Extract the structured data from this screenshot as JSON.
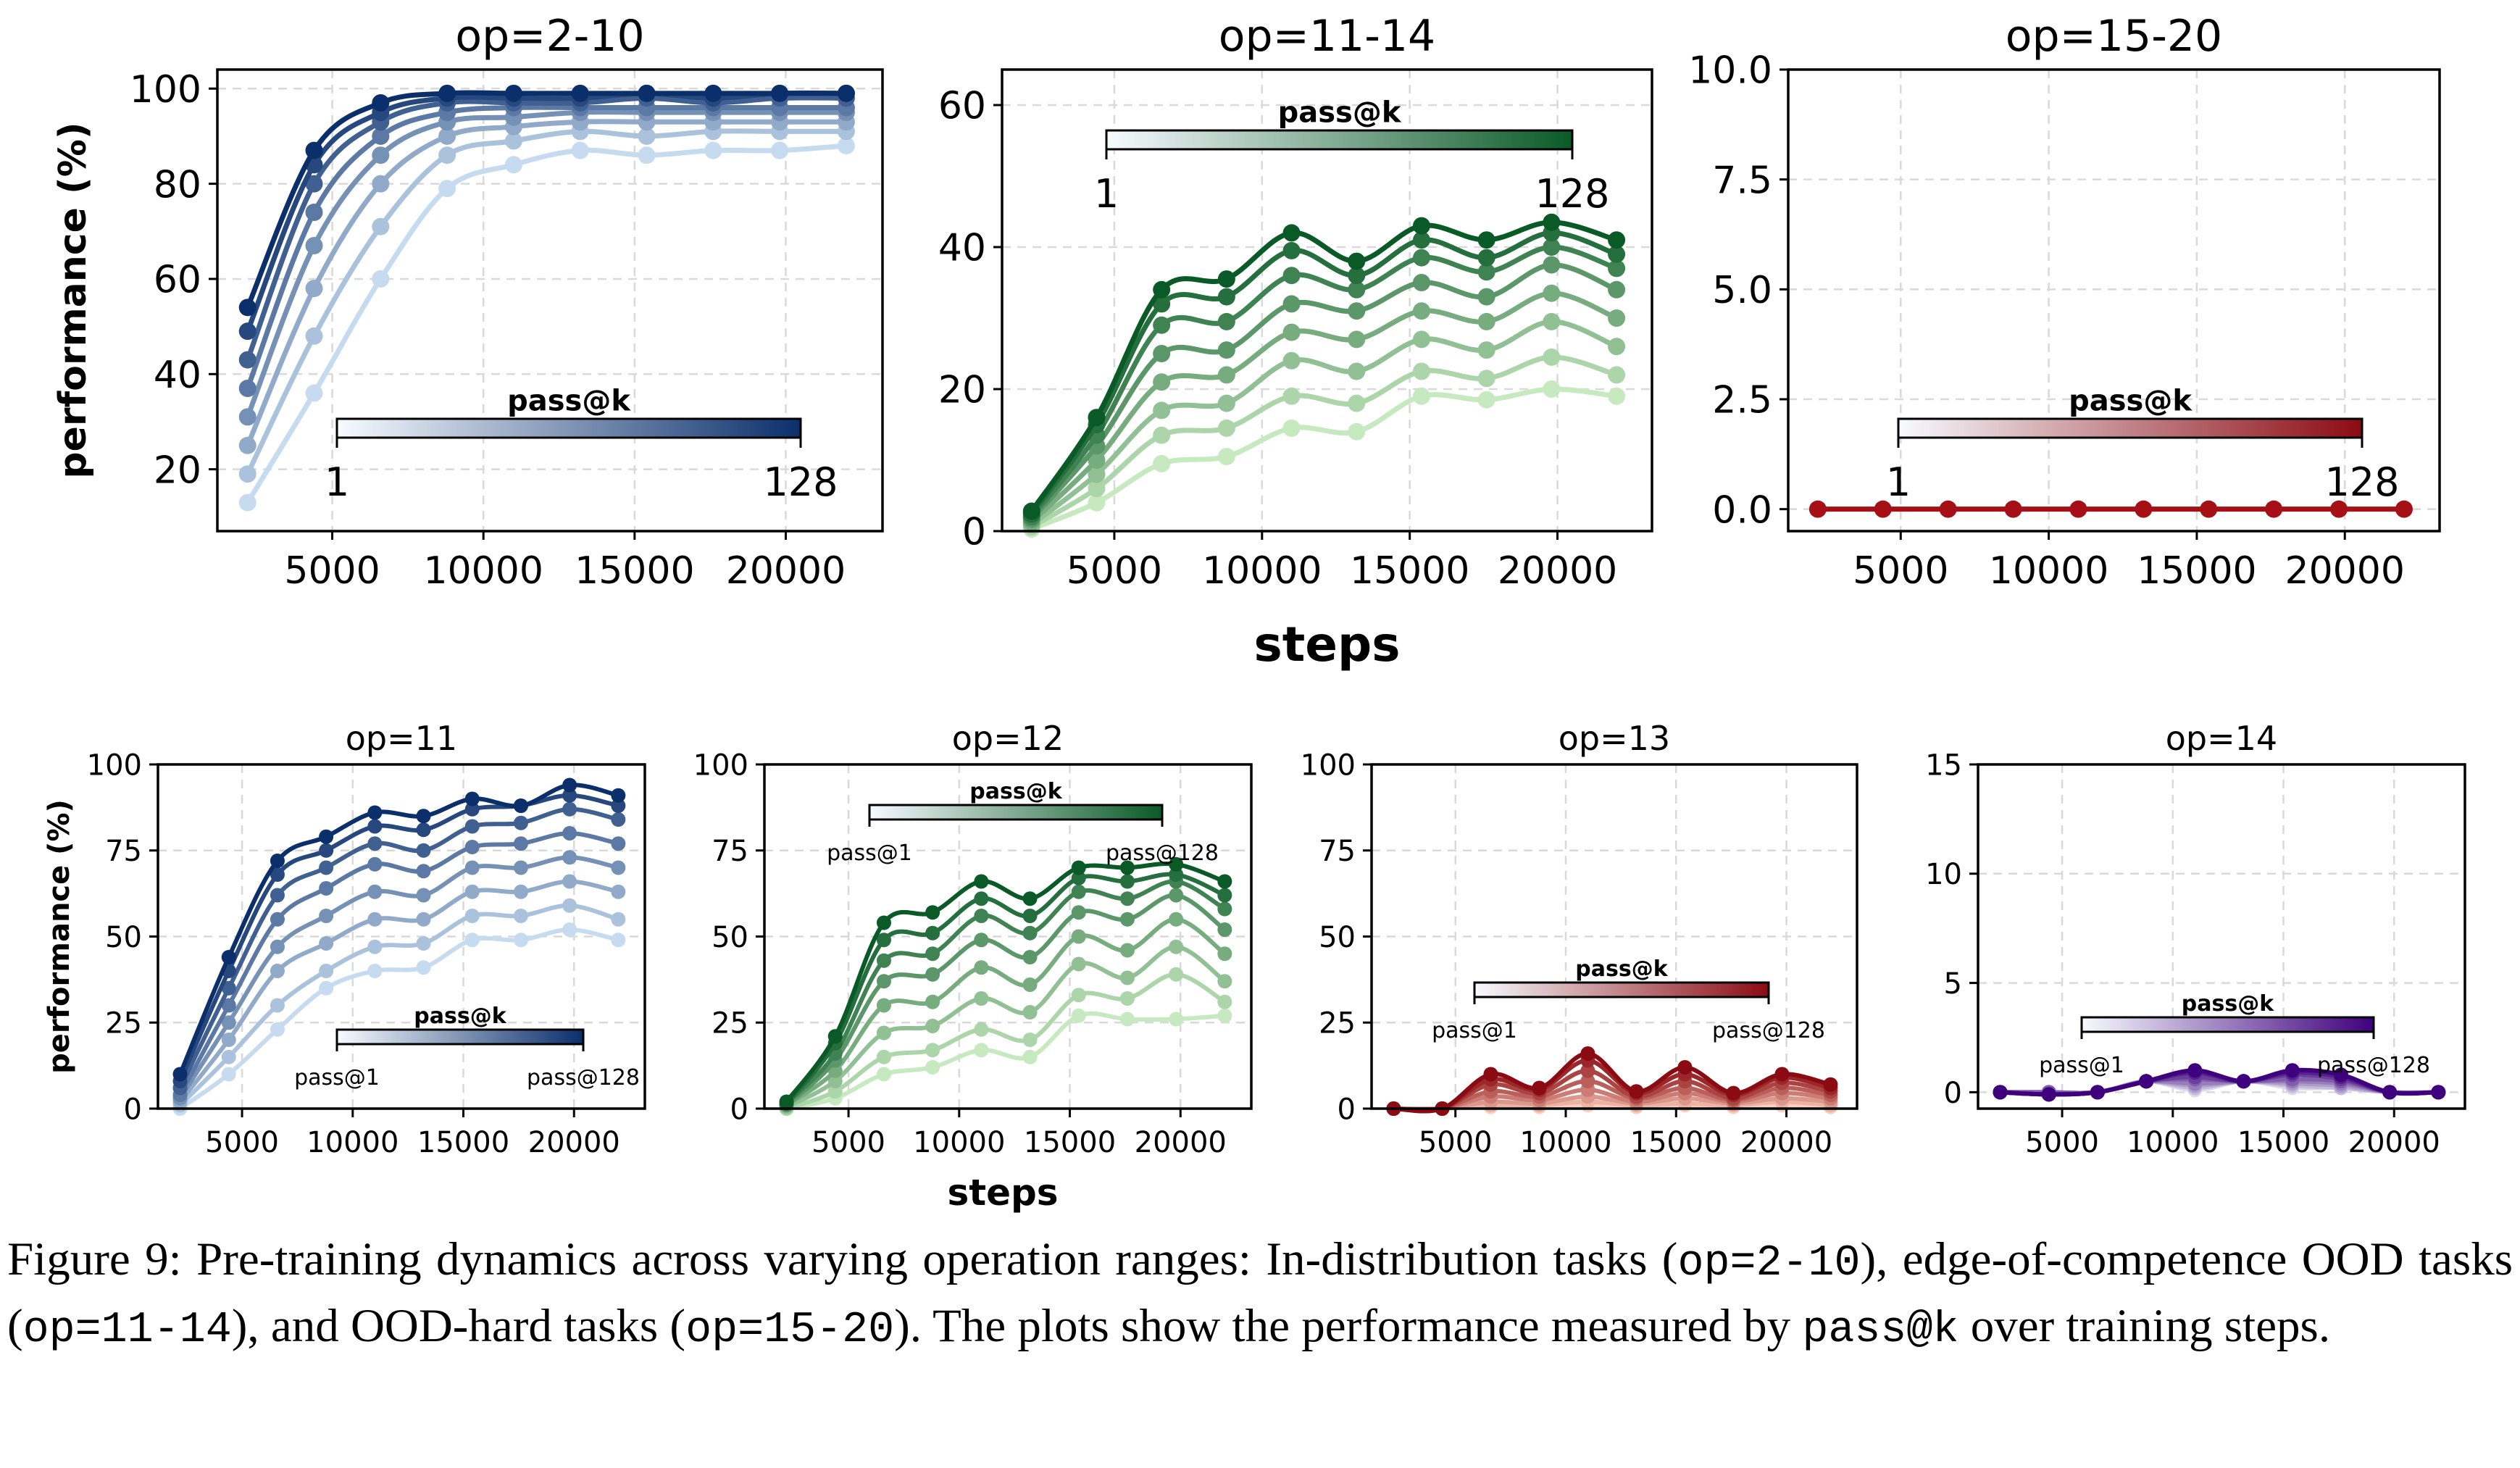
{
  "chart_data": [
    {
      "type": "line",
      "title": "op=2-10",
      "ylabel": "performance (%)",
      "xlabel": "",
      "xlim": [
        1200,
        23200
      ],
      "ylim": [
        7,
        104
      ],
      "yticks": [
        20,
        40,
        60,
        80,
        100
      ],
      "xticks": [
        5000,
        10000,
        15000,
        20000
      ],
      "colormap": "blues",
      "legend": {
        "title": "pass@k",
        "left": "1",
        "right": "128",
        "placement": "bottom-right"
      },
      "x": [
        2200,
        4400,
        6600,
        8800,
        11000,
        13200,
        15400,
        17600,
        19800,
        22000
      ],
      "series": [
        {
          "name": "pass@1",
          "values": [
            13,
            36,
            60,
            79,
            84,
            87,
            86,
            87,
            87,
            88
          ]
        },
        {
          "name": "pass@2",
          "values": [
            19,
            48,
            71,
            86,
            89,
            91,
            90,
            91,
            91,
            91
          ]
        },
        {
          "name": "pass@4",
          "values": [
            25,
            58,
            80,
            90,
            92,
            93,
            93,
            93,
            93,
            93
          ]
        },
        {
          "name": "pass@8",
          "values": [
            31,
            67,
            86,
            93,
            94,
            95,
            95,
            95,
            95,
            95
          ]
        },
        {
          "name": "pass@16",
          "values": [
            37,
            74,
            90,
            95,
            96,
            96,
            96,
            96,
            96,
            96
          ]
        },
        {
          "name": "pass@32",
          "values": [
            43,
            80,
            93,
            97,
            97,
            97,
            98,
            97,
            98,
            98
          ]
        },
        {
          "name": "pass@64",
          "values": [
            49,
            84,
            95,
            98,
            98,
            98,
            99,
            98,
            99,
            99
          ]
        },
        {
          "name": "pass@128",
          "values": [
            54,
            87,
            97,
            99,
            99,
            99,
            99,
            99,
            99,
            99
          ]
        }
      ]
    },
    {
      "type": "line",
      "title": "op=11-14",
      "ylabel": "",
      "xlabel": "steps",
      "xlim": [
        1200,
        23200
      ],
      "ylim": [
        0,
        65
      ],
      "yticks": [
        0,
        20,
        40,
        60
      ],
      "xticks": [
        5000,
        10000,
        15000,
        20000
      ],
      "colormap": "greens",
      "legend": {
        "title": "pass@k",
        "left": "1",
        "right": "128",
        "placement": "top-right"
      },
      "x": [
        2200,
        4400,
        6600,
        8800,
        11000,
        13200,
        15400,
        17600,
        19800,
        22000
      ],
      "series": [
        {
          "name": "pass@1",
          "values": [
            0.3,
            4,
            9.5,
            10.5,
            14.5,
            14,
            19,
            18.5,
            20,
            19
          ]
        },
        {
          "name": "pass@2",
          "values": [
            0.6,
            6,
            13.5,
            14.5,
            19,
            18,
            22.5,
            21.5,
            24.5,
            22
          ]
        },
        {
          "name": "pass@4",
          "values": [
            0.9,
            8,
            17,
            18,
            24,
            22.5,
            27,
            25.5,
            29.5,
            26
          ]
        },
        {
          "name": "pass@8",
          "values": [
            1.3,
            10,
            21,
            22,
            28,
            27,
            31,
            29.5,
            33.5,
            30
          ]
        },
        {
          "name": "pass@16",
          "values": [
            1.7,
            12,
            25,
            25.5,
            32,
            31,
            35,
            33,
            37.5,
            34
          ]
        },
        {
          "name": "pass@32",
          "values": [
            2,
            13.5,
            29,
            29.5,
            36,
            34,
            38.5,
            36.5,
            40,
            37
          ]
        },
        {
          "name": "pass@64",
          "values": [
            2.4,
            15,
            32,
            33,
            39.5,
            36,
            41,
            38.5,
            42,
            39
          ]
        },
        {
          "name": "pass@128",
          "values": [
            2.8,
            16,
            34,
            35.5,
            42,
            38,
            43,
            41,
            43.5,
            41
          ]
        }
      ]
    },
    {
      "type": "line",
      "title": "op=15-20",
      "ylabel": "",
      "xlabel": "",
      "xlim": [
        1200,
        23200
      ],
      "ylim": [
        -0.5,
        10
      ],
      "yticks": [
        0.0,
        2.5,
        5.0,
        7.5,
        10.0
      ],
      "xticks": [
        5000,
        10000,
        15000,
        20000
      ],
      "colormap": "reds",
      "legend": {
        "title": "pass@k",
        "left": "1",
        "right": "128",
        "placement": "bottom-right"
      },
      "x": [
        2200,
        4400,
        6600,
        8800,
        11000,
        13200,
        15400,
        17600,
        19800,
        22000
      ],
      "series": [
        {
          "name": "pass@1..128",
          "values": [
            0,
            0,
            0,
            0,
            0,
            0,
            0,
            0,
            0,
            0
          ]
        }
      ]
    },
    {
      "type": "line",
      "title": "op=11",
      "ylabel": "performance (%)",
      "xlabel": "",
      "xlim": [
        1200,
        23200
      ],
      "ylim": [
        0,
        100
      ],
      "yticks": [
        0,
        25,
        50,
        75,
        100
      ],
      "xticks": [
        5000,
        10000,
        15000,
        20000
      ],
      "colormap": "blues",
      "legend": {
        "title": "pass@k",
        "left": "pass@1",
        "right": "pass@128",
        "placement": "bottom-right"
      },
      "x": [
        2200,
        4400,
        6600,
        8800,
        11000,
        13200,
        15400,
        17600,
        19800,
        22000
      ],
      "series": [
        {
          "name": "pass@1",
          "values": [
            0,
            10,
            23,
            35,
            40,
            41,
            49,
            49,
            52,
            49
          ]
        },
        {
          "name": "pass@2",
          "values": [
            1,
            15,
            30,
            40,
            47,
            48,
            56,
            56,
            59,
            55
          ]
        },
        {
          "name": "pass@4",
          "values": [
            2,
            20,
            40,
            48,
            55,
            55,
            63,
            63,
            66,
            63
          ]
        },
        {
          "name": "pass@8",
          "values": [
            3,
            25,
            47,
            56,
            63,
            62,
            70,
            70,
            73,
            70
          ]
        },
        {
          "name": "pass@16",
          "values": [
            4,
            30,
            55,
            64,
            71,
            69,
            76,
            77,
            80,
            77
          ]
        },
        {
          "name": "pass@32",
          "values": [
            6,
            35,
            62,
            70,
            77,
            75,
            82,
            83,
            87,
            84
          ]
        },
        {
          "name": "pass@64",
          "values": [
            8,
            40,
            68,
            75,
            82,
            81,
            87,
            88,
            91,
            88
          ]
        },
        {
          "name": "pass@128",
          "values": [
            10,
            44,
            72,
            79,
            86,
            85,
            90,
            88,
            94,
            91
          ]
        }
      ]
    },
    {
      "type": "line",
      "title": "op=12",
      "ylabel": "",
      "xlabel": "steps",
      "xlim": [
        1200,
        23200
      ],
      "ylim": [
        0,
        100
      ],
      "yticks": [
        0,
        25,
        50,
        75,
        100
      ],
      "xticks": [
        5000,
        10000,
        15000,
        20000
      ],
      "colormap": "greens",
      "legend": {
        "title": "pass@k",
        "left": "pass@1",
        "right": "pass@128",
        "placement": "top-center"
      },
      "x": [
        2200,
        4400,
        6600,
        8800,
        11000,
        13200,
        15400,
        17600,
        19800,
        22000
      ],
      "series": [
        {
          "name": "pass@1",
          "values": [
            0,
            3,
            10,
            12,
            17,
            15,
            27,
            26,
            26,
            27
          ]
        },
        {
          "name": "pass@2",
          "values": [
            0,
            5,
            15,
            17,
            23,
            20,
            33,
            32,
            39,
            31
          ]
        },
        {
          "name": "pass@4",
          "values": [
            0.5,
            8,
            22,
            24,
            32,
            28,
            42,
            38,
            47,
            37
          ]
        },
        {
          "name": "pass@8",
          "values": [
            1,
            11,
            30,
            31,
            41,
            36,
            50,
            46,
            55,
            45
          ]
        },
        {
          "name": "pass@16",
          "values": [
            1,
            14,
            37,
            39,
            49,
            44,
            57,
            55,
            62,
            52
          ]
        },
        {
          "name": "pass@32",
          "values": [
            1.5,
            16,
            43,
            45,
            56,
            51,
            63,
            61,
            66,
            58
          ]
        },
        {
          "name": "pass@64",
          "values": [
            1.5,
            19,
            49,
            51,
            61,
            56,
            67,
            66,
            68,
            62
          ]
        },
        {
          "name": "pass@128",
          "values": [
            2,
            21,
            54,
            57,
            66,
            61,
            70,
            70,
            71,
            66
          ]
        }
      ]
    },
    {
      "type": "line",
      "title": "op=13",
      "ylabel": "",
      "xlabel": "",
      "xlim": [
        1200,
        23200
      ],
      "ylim": [
        0,
        100
      ],
      "yticks": [
        0,
        25,
        50,
        75,
        100
      ],
      "xticks": [
        5000,
        10000,
        15000,
        20000
      ],
      "colormap": "reds",
      "legend": {
        "title": "pass@k",
        "left": "pass@1",
        "right": "pass@128",
        "placement": "center"
      },
      "x": [
        2200,
        4400,
        6600,
        8800,
        11000,
        13200,
        15400,
        17600,
        19800,
        22000
      ],
      "series": [
        {
          "name": "pass@1",
          "values": [
            0,
            0,
            0.5,
            0.5,
            1,
            0.5,
            1,
            0.5,
            1,
            0.5
          ]
        },
        {
          "name": "pass@2",
          "values": [
            0,
            0,
            1,
            1,
            2,
            1,
            1.5,
            1,
            2,
            1
          ]
        },
        {
          "name": "pass@4",
          "values": [
            0,
            0,
            2,
            1.5,
            3.5,
            1.5,
            3,
            1.5,
            3,
            2
          ]
        },
        {
          "name": "pass@8",
          "values": [
            0,
            0,
            3.5,
            2.5,
            5.5,
            2,
            4.5,
            2,
            4.5,
            3
          ]
        },
        {
          "name": "pass@16",
          "values": [
            0,
            0,
            5,
            3.5,
            8,
            3,
            6,
            2.5,
            6,
            4
          ]
        },
        {
          "name": "pass@32",
          "values": [
            0,
            0,
            7,
            4.5,
            11,
            3.5,
            8,
            3,
            7.5,
            5
          ]
        },
        {
          "name": "pass@64",
          "values": [
            0,
            0,
            8.5,
            5.5,
            14,
            4.5,
            10,
            4,
            9,
            6
          ]
        },
        {
          "name": "pass@128",
          "values": [
            0,
            0,
            10,
            6,
            16,
            5,
            12,
            4.5,
            10,
            7
          ]
        }
      ]
    },
    {
      "type": "line",
      "title": "op=14",
      "ylabel": "",
      "xlabel": "",
      "xlim": [
        1200,
        23200
      ],
      "ylim": [
        -0.75,
        15
      ],
      "yticks": [
        0,
        5,
        10,
        15
      ],
      "xticks": [
        5000,
        10000,
        15000,
        20000
      ],
      "colormap": "purples",
      "legend": {
        "title": "pass@k",
        "left": "pass@1",
        "right": "pass@128",
        "placement": "center"
      },
      "x": [
        2200,
        4400,
        6600,
        8800,
        11000,
        13200,
        15400,
        17600,
        19800,
        22000
      ],
      "series": [
        {
          "name": "pass@1",
          "values": [
            0,
            0,
            0,
            0.5,
            0.1,
            0.5,
            0.2,
            0.2,
            0,
            0
          ]
        },
        {
          "name": "pass@2",
          "values": [
            0,
            0,
            0,
            0.5,
            0.2,
            0.5,
            0.3,
            0.2,
            0,
            0
          ]
        },
        {
          "name": "pass@4",
          "values": [
            0,
            0,
            0,
            0.5,
            0.3,
            0.5,
            0.4,
            0.3,
            0,
            0
          ]
        },
        {
          "name": "pass@8",
          "values": [
            0,
            0,
            0,
            0.5,
            0.4,
            0.5,
            0.5,
            0.4,
            0,
            0
          ]
        },
        {
          "name": "pass@16",
          "values": [
            0,
            0,
            0,
            0.5,
            0.6,
            0.5,
            0.6,
            0.5,
            0,
            0
          ]
        },
        {
          "name": "pass@32",
          "values": [
            0,
            -0.1,
            0,
            0.5,
            0.7,
            0.5,
            0.8,
            0.6,
            0,
            0
          ]
        },
        {
          "name": "pass@64",
          "values": [
            0,
            -0.1,
            0,
            0.5,
            0.9,
            0.5,
            0.9,
            0.7,
            0,
            0
          ]
        },
        {
          "name": "pass@128",
          "values": [
            0,
            -0.1,
            0,
            0.5,
            1.0,
            0.5,
            1.0,
            0.8,
            0,
            0
          ]
        }
      ]
    }
  ],
  "caption": {
    "p1": "Figure 9:  Pre-training dynamics across varying operation ranges:  In-distribution tasks (",
    "c1": "op=2-10",
    "p2": "), edge-of-competence OOD tasks (",
    "c2": "op=11-14",
    "p3": "), and OOD-hard tasks (",
    "c3": "op=15-20",
    "p4": ").  The plots show the performance measured by ",
    "c4": "pass@k",
    "p5": " over training steps."
  },
  "colors": {
    "blues": [
      "#c6dbef",
      "#0b2f6b"
    ],
    "greens": [
      "#c7e9c0",
      "#0a5a27"
    ],
    "reds": [
      "#fcd0bd",
      "#8b0b12"
    ],
    "purples": [
      "#dadaeb",
      "#3f007d"
    ]
  }
}
